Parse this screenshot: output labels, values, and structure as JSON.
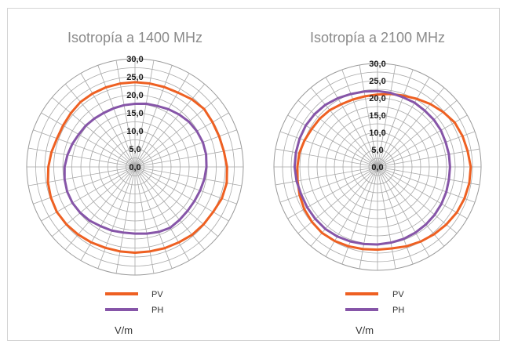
{
  "chart_data": [
    {
      "type": "radar",
      "title": "Isotropía a 1400 MHz",
      "unit": "V/m",
      "ticks": [
        "0,0",
        "5,0",
        "10,0",
        "15,0",
        "20,0",
        "25,0",
        "30,0"
      ],
      "rmax": 30,
      "spokes": 36,
      "rings": 12,
      "series": [
        {
          "name": "PV",
          "color": "#ee6022",
          "values": [
            23.5,
            23.5,
            23.6,
            23.8,
            24.5,
            25.0,
            24.8,
            24.8,
            25.0,
            25.5,
            25.8,
            25.6,
            25.0,
            24.8,
            24.6,
            24.2,
            24.0,
            23.8,
            23.8,
            23.8,
            23.9,
            24.2,
            24.5,
            24.8,
            25.0,
            24.8,
            24.5,
            24.0,
            23.5,
            23.0,
            23.0,
            23.2,
            23.5,
            23.5,
            23.5,
            23.5
          ]
        },
        {
          "name": "PH",
          "color": "#8655a8",
          "values": [
            17.5,
            17.8,
            18.0,
            18.5,
            19.0,
            19.5,
            19.8,
            20.0,
            20.0,
            19.8,
            19.5,
            19.2,
            19.0,
            19.0,
            19.2,
            19.5,
            19.2,
            18.8,
            18.5,
            18.5,
            18.8,
            19.0,
            19.5,
            19.8,
            20.0,
            20.0,
            19.8,
            19.5,
            19.0,
            18.5,
            18.0,
            17.8,
            17.5,
            17.3,
            17.3,
            17.4
          ]
        }
      ]
    },
    {
      "type": "radar",
      "title": "Isotropía a 2100 MHz",
      "unit": "V/m",
      "ticks": [
        "0,0",
        "5,0",
        "10,0",
        "15,0",
        "20,0",
        "25,0",
        "30,0"
      ],
      "rmax": 30,
      "spokes": 36,
      "rings": 12,
      "series": [
        {
          "name": "PV",
          "color": "#ee6022",
          "values": [
            21.0,
            21.5,
            22.0,
            22.8,
            23.8,
            24.8,
            25.8,
            26.2,
            26.5,
            27.0,
            27.0,
            26.8,
            26.5,
            26.0,
            25.5,
            25.0,
            24.5,
            24.0,
            24.0,
            24.2,
            24.5,
            24.8,
            25.0,
            24.8,
            24.5,
            24.0,
            23.5,
            23.2,
            23.0,
            22.5,
            22.0,
            21.8,
            21.5,
            21.0,
            20.8,
            20.8
          ]
        },
        {
          "name": "PH",
          "color": "#8655a8",
          "values": [
            22.0,
            21.8,
            21.5,
            21.5,
            21.3,
            21.3,
            21.2,
            21.0,
            21.0,
            21.0,
            21.0,
            21.2,
            21.4,
            21.6,
            21.8,
            22.0,
            22.2,
            22.3,
            22.5,
            22.7,
            23.0,
            23.3,
            23.5,
            23.5,
            23.5,
            23.5,
            23.8,
            24.0,
            24.0,
            24.0,
            24.0,
            23.8,
            23.5,
            23.0,
            22.5,
            22.2
          ]
        }
      ]
    }
  ]
}
